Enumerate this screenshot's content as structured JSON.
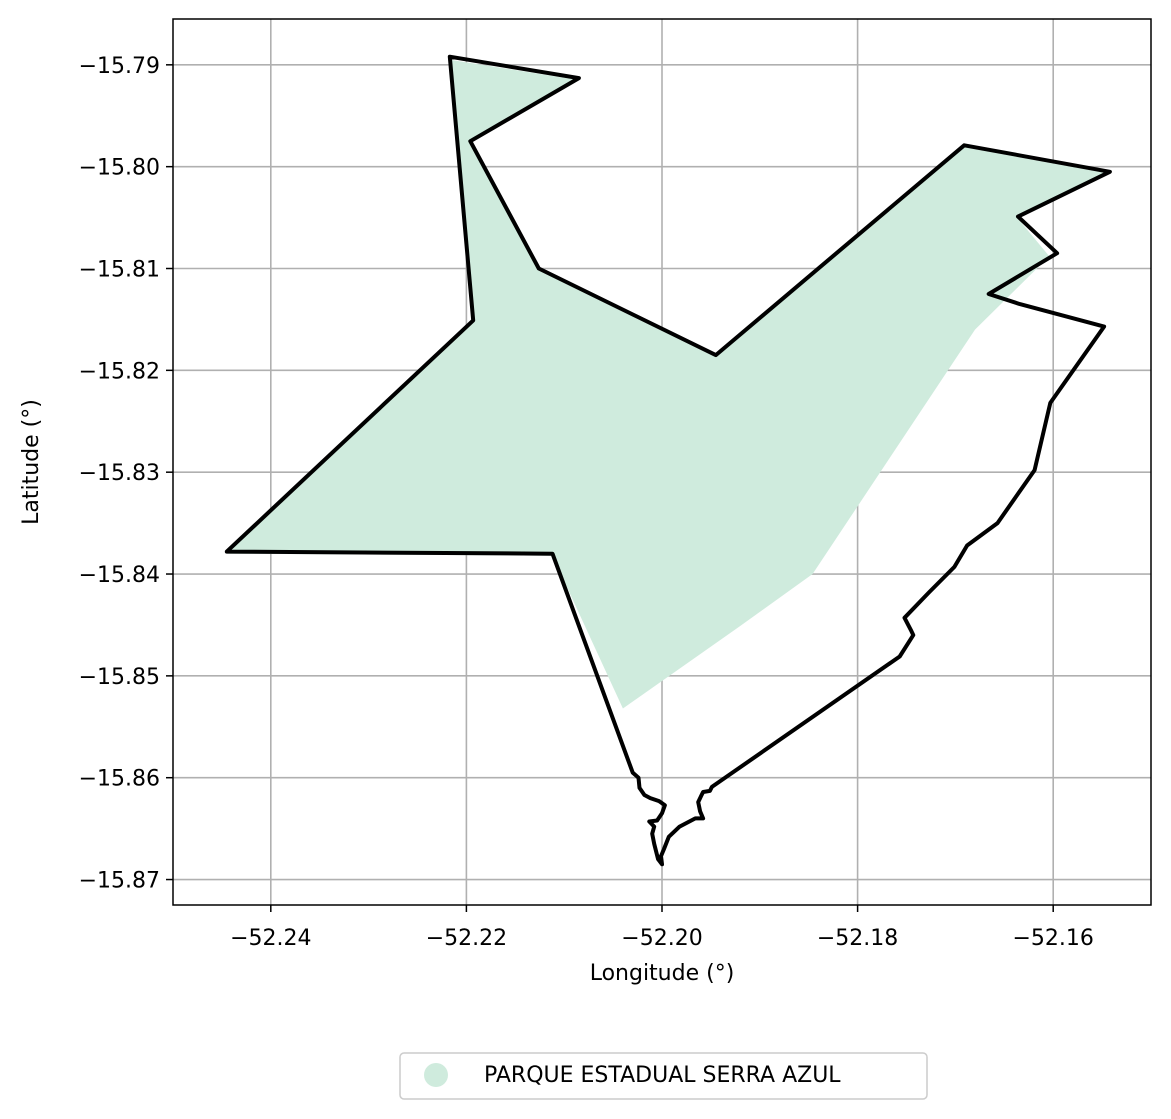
{
  "chart_data": {
    "type": "map",
    "xlabel": "Longitude (°)",
    "ylabel": "Latitude (°)",
    "xlim": [
      -52.25,
      -52.15
    ],
    "ylim": [
      -15.8725,
      -15.7855
    ],
    "grid": true,
    "x_ticks": [
      {
        "value": -52.24,
        "label": "−52.24"
      },
      {
        "value": -52.22,
        "label": "−52.22"
      },
      {
        "value": -52.2,
        "label": "−52.20"
      },
      {
        "value": -52.18,
        "label": "−52.18"
      },
      {
        "value": -52.16,
        "label": "−52.16"
      }
    ],
    "y_ticks": [
      {
        "value": -15.79,
        "label": "−15.79"
      },
      {
        "value": -15.8,
        "label": "−15.80"
      },
      {
        "value": -15.81,
        "label": "−15.81"
      },
      {
        "value": -15.82,
        "label": "−15.82"
      },
      {
        "value": -15.83,
        "label": "−15.83"
      },
      {
        "value": -15.84,
        "label": "−15.84"
      },
      {
        "value": -15.85,
        "label": "−15.85"
      },
      {
        "value": -15.86,
        "label": "−15.86"
      },
      {
        "value": -15.87,
        "label": "−15.87"
      }
    ],
    "legend": {
      "placement": "bottom-center",
      "entries": [
        {
          "label": "PARQUE ESTADUAL SERRA AZUL",
          "color": "#cfebdd",
          "marker": "circle"
        }
      ]
    },
    "fill_area": {
      "name": "PARQUE ESTADUAL SERRA AZUL",
      "color": "#cfebdd",
      "points": [
        [
          -52.2217,
          -15.7895
        ],
        [
          -52.2085,
          -15.7915
        ],
        [
          -52.2196,
          -15.7977
        ],
        [
          -52.2126,
          -15.8102
        ],
        [
          -52.1945,
          -15.8187
        ],
        [
          -52.1691,
          -15.7981
        ],
        [
          -52.1542,
          -15.8007
        ],
        [
          -52.1636,
          -15.8051
        ],
        [
          -52.1604,
          -15.8088
        ],
        [
          -52.168,
          -15.816
        ],
        [
          -52.1846,
          -15.84
        ],
        [
          -52.192,
          -15.8451
        ],
        [
          -52.204,
          -15.8532
        ],
        [
          -52.2112,
          -15.8382
        ],
        [
          -52.2445,
          -15.838
        ],
        [
          -52.2193,
          -15.8153
        ]
      ]
    },
    "boundary": {
      "color": "#000000",
      "points": [
        [
          -52.2217,
          -15.7892
        ],
        [
          -52.2085,
          -15.7913
        ],
        [
          -52.2196,
          -15.7975
        ],
        [
          -52.2126,
          -15.81
        ],
        [
          -52.1945,
          -15.8185
        ],
        [
          -52.1691,
          -15.7979
        ],
        [
          -52.1542,
          -15.8005
        ],
        [
          -52.1636,
          -15.8049
        ],
        [
          -52.1596,
          -15.8085
        ],
        [
          -52.1666,
          -15.8125
        ],
        [
          -52.1634,
          -15.8135
        ],
        [
          -52.1548,
          -15.8157
        ],
        [
          -52.1603,
          -15.8232
        ],
        [
          -52.1619,
          -15.8298
        ],
        [
          -52.1657,
          -15.835
        ],
        [
          -52.1688,
          -15.8372
        ],
        [
          -52.1701,
          -15.8393
        ],
        [
          -52.1727,
          -15.8418
        ],
        [
          -52.1752,
          -15.8443
        ],
        [
          -52.1745,
          -15.8456
        ],
        [
          -52.1743,
          -15.846
        ],
        [
          -52.1757,
          -15.8481
        ],
        [
          -52.1949,
          -15.8609
        ],
        [
          -52.1951,
          -15.8613
        ],
        [
          -52.1958,
          -15.8614
        ],
        [
          -52.196,
          -15.8618
        ],
        [
          -52.1963,
          -15.8624
        ],
        [
          -52.1961,
          -15.8633
        ],
        [
          -52.1958,
          -15.864
        ],
        [
          -52.1966,
          -15.864
        ],
        [
          -52.1982,
          -15.8648
        ],
        [
          -52.1993,
          -15.8658
        ],
        [
          -52.1998,
          -15.867
        ],
        [
          -52.2001,
          -15.8677
        ],
        [
          -52.2,
          -15.8685
        ],
        [
          -52.2004,
          -15.868
        ],
        [
          -52.2008,
          -15.8665
        ],
        [
          -52.201,
          -15.8655
        ],
        [
          -52.2008,
          -15.8648
        ],
        [
          -52.2013,
          -15.8643
        ],
        [
          -52.2005,
          -15.8642
        ],
        [
          -52.2,
          -15.8635
        ],
        [
          -52.1997,
          -15.8627
        ],
        [
          -52.2003,
          -15.8623
        ],
        [
          -52.2012,
          -15.862
        ],
        [
          -52.2018,
          -15.8617
        ],
        [
          -52.2023,
          -15.861
        ],
        [
          -52.2024,
          -15.86
        ],
        [
          -52.203,
          -15.8595
        ],
        [
          -52.2112,
          -15.838
        ],
        [
          -52.2445,
          -15.8378
        ],
        [
          -52.2193,
          -15.8151
        ]
      ]
    }
  }
}
